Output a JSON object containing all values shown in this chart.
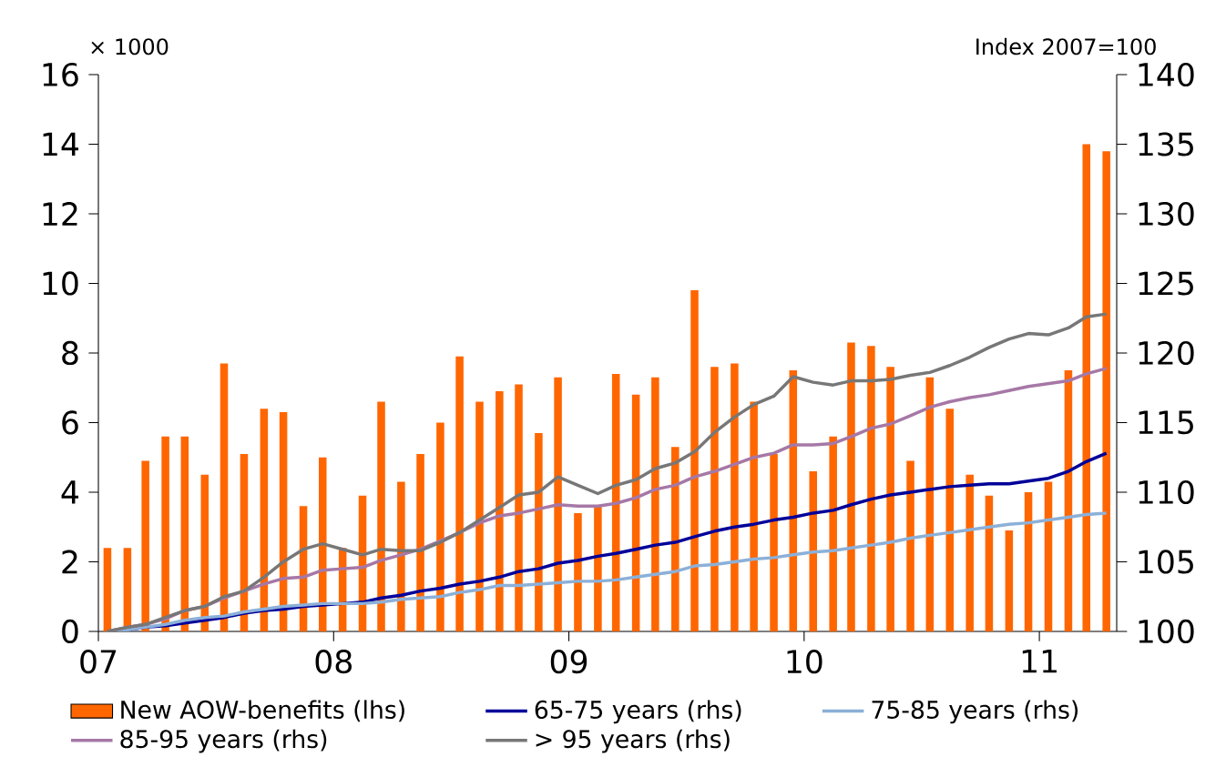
{
  "chart_data": {
    "type": "bar",
    "ylabel": "× 1000",
    "y2label": "Index 2007=100",
    "x": [
      "2007-01-15",
      "2007-02-15",
      "2007-03-15",
      "2007-04-15",
      "2007-05-15",
      "2007-06-15",
      "2007-07-15",
      "2007-08-15",
      "2007-09-15",
      "2007-10-15",
      "2007-11-15",
      "2007-12-15",
      "2008-01-15",
      "2008-02-15",
      "2008-03-15",
      "2008-04-15",
      "2008-05-15",
      "2008-06-15",
      "2008-07-15",
      "2008-08-15",
      "2008-09-15",
      "2008-10-15",
      "2008-11-15",
      "2008-12-15",
      "2009-01-15",
      "2009-02-15",
      "2009-03-15",
      "2009-04-15",
      "2009-05-15",
      "2009-06-15",
      "2009-07-15",
      "2009-08-15",
      "2009-09-15",
      "2009-10-15",
      "2009-11-15",
      "2009-12-15",
      "2010-01-15",
      "2010-02-15",
      "2010-03-15",
      "2010-04-15",
      "2010-05-15",
      "2010-06-15",
      "2010-07-15",
      "2010-08-15",
      "2010-09-15",
      "2010-10-15",
      "2010-11-15",
      "2010-12-15",
      "2011-01-15",
      "2011-02-15",
      "2011-03-15",
      "2011-04-15"
    ],
    "series": [
      {
        "name": "New AOW-benefits (lhs)",
        "color": "#ff6600",
        "values": [
          2.4,
          2.4,
          4.9,
          5.6,
          5.6,
          4.5,
          7.7,
          5.1,
          6.4,
          6.3,
          3.6,
          5.0,
          2.4,
          3.9,
          6.6,
          4.3,
          5.1,
          6.0,
          7.9,
          6.6,
          6.9,
          7.1,
          5.7,
          7.3,
          3.4,
          3.6,
          7.4,
          6.8,
          7.3,
          5.3,
          9.8,
          7.6,
          7.7,
          6.6,
          5.1,
          7.5,
          4.6,
          5.6,
          8.3,
          8.2,
          7.6,
          4.9,
          7.3,
          6.4,
          4.5,
          3.9,
          2.9,
          4.0,
          4.3,
          7.5,
          14.0,
          13.8
        ]
      },
      {
        "name": "65-75 years (rhs)",
        "type": "line",
        "axis": "y2",
        "color": "#000099",
        "values": [
          100,
          100.1,
          100.3,
          100.4,
          100.6,
          100.8,
          101.0,
          101.3,
          101.5,
          101.6,
          101.8,
          101.9,
          102.0,
          102.1,
          102.4,
          102.6,
          102.9,
          103.1,
          103.4,
          103.6,
          103.9,
          104.3,
          104.5,
          104.9,
          105.1,
          105.4,
          105.6,
          105.9,
          106.2,
          106.4,
          106.8,
          107.2,
          107.5,
          107.7,
          108.0,
          108.2,
          108.5,
          108.7,
          109.1,
          109.5,
          109.8,
          110.0,
          110.2,
          110.4,
          110.5,
          110.6,
          110.6,
          110.8,
          111.0,
          111.5,
          112.2,
          112.8
        ]
      },
      {
        "name": "75-85 years (rhs)",
        "type": "line",
        "axis": "y2",
        "color": "#8cb0d8",
        "values": [
          100,
          100.1,
          100.3,
          100.5,
          100.8,
          101.0,
          101.1,
          101.4,
          101.6,
          101.8,
          101.9,
          102.0,
          102.0,
          102.0,
          102.1,
          102.3,
          102.4,
          102.5,
          102.8,
          103.0,
          103.3,
          103.3,
          103.4,
          103.5,
          103.6,
          103.6,
          103.7,
          103.9,
          104.1,
          104.3,
          104.7,
          104.8,
          105.0,
          105.2,
          105.3,
          105.5,
          105.7,
          105.8,
          106.0,
          106.2,
          106.4,
          106.7,
          106.9,
          107.1,
          107.3,
          107.5,
          107.7,
          107.8,
          108.0,
          108.2,
          108.4,
          108.5
        ]
      },
      {
        "name": "85-95 years (rhs)",
        "type": "line",
        "axis": "y2",
        "color": "#a678a6",
        "values": [
          100,
          100.3,
          100.5,
          100.9,
          101.5,
          101.8,
          102.4,
          102.9,
          103.4,
          103.8,
          103.9,
          104.4,
          104.5,
          104.6,
          105.1,
          105.5,
          105.9,
          106.5,
          107.1,
          107.8,
          108.3,
          108.5,
          108.8,
          109.1,
          109.0,
          109.0,
          109.2,
          109.6,
          110.2,
          110.5,
          111.1,
          111.5,
          112.0,
          112.5,
          112.8,
          113.4,
          113.4,
          113.5,
          114.0,
          114.6,
          114.9,
          115.5,
          116.1,
          116.5,
          116.8,
          117.0,
          117.3,
          117.6,
          117.8,
          118.0,
          118.5,
          118.9
        ]
      },
      {
        "name": "> 95 years (rhs)",
        "type": "line",
        "axis": "y2",
        "color": "#777777",
        "values": [
          100,
          100.3,
          100.5,
          101.0,
          101.5,
          101.8,
          102.5,
          102.9,
          103.9,
          105.0,
          105.9,
          106.3,
          105.9,
          105.5,
          105.9,
          105.8,
          105.8,
          106.4,
          107.1,
          108.0,
          108.9,
          109.8,
          110.0,
          111.1,
          110.5,
          109.9,
          110.5,
          110.9,
          111.7,
          112.1,
          112.9,
          114.3,
          115.4,
          116.3,
          116.9,
          118.3,
          117.9,
          117.7,
          118.0,
          118.0,
          118.1,
          118.4,
          118.6,
          119.1,
          119.7,
          120.4,
          121.0,
          121.4,
          121.3,
          121.8,
          122.6,
          122.8
        ]
      }
    ],
    "xlim": [
      "2007-01-01",
      "2011-05-01"
    ],
    "xticks": [
      {
        "value": "2007-01-01",
        "label": "07"
      },
      {
        "value": "2008-01-01",
        "label": "08"
      },
      {
        "value": "2009-01-01",
        "label": "09"
      },
      {
        "value": "2010-01-01",
        "label": "10"
      },
      {
        "value": "2011-01-01",
        "label": "11"
      }
    ],
    "ylim": [
      0,
      16
    ],
    "yticks": [
      0,
      2,
      4,
      6,
      8,
      10,
      12,
      14,
      16
    ],
    "y2lim": [
      100,
      140
    ],
    "y2ticks": [
      100,
      105,
      110,
      115,
      120,
      125,
      130,
      135,
      140
    ],
    "legend": "bottom"
  }
}
